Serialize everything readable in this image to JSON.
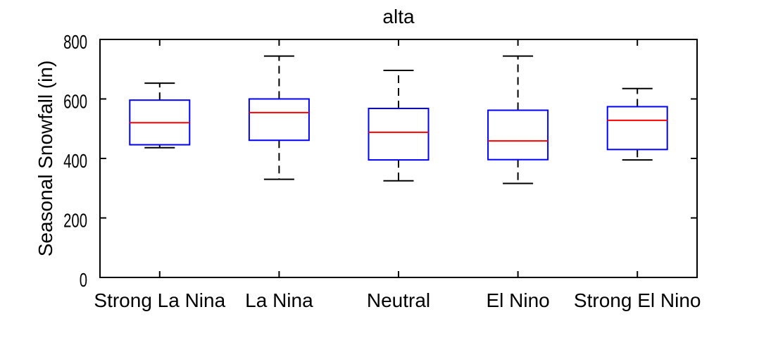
{
  "chart_data": {
    "type": "box",
    "title": "alta",
    "ylabel": "Seasonal Snowfall (in)",
    "categories": [
      "Strong La Nina",
      "La Nina",
      "Neutral",
      "El Nino",
      "Strong El Nino"
    ],
    "ylim": [
      0,
      800
    ],
    "yticks": [
      0,
      200,
      400,
      600,
      800
    ],
    "grid": false,
    "legend": false,
    "boxes": [
      {
        "category": "Strong La Nina",
        "whisker_low": 436,
        "q1": 446,
        "median": 520,
        "q3": 596,
        "whisker_high": 653
      },
      {
        "category": "La Nina",
        "whisker_low": 330,
        "q1": 461,
        "median": 554,
        "q3": 600,
        "whisker_high": 744
      },
      {
        "category": "Neutral",
        "whisker_low": 325,
        "q1": 395,
        "median": 488,
        "q3": 568,
        "whisker_high": 696
      },
      {
        "category": "El Nino",
        "whisker_low": 316,
        "q1": 396,
        "median": 459,
        "q3": 562,
        "whisker_high": 744
      },
      {
        "category": "Strong El Nino",
        "whisker_low": 395,
        "q1": 430,
        "median": 528,
        "q3": 574,
        "whisker_high": 635
      }
    ],
    "colors": {
      "box": "#0000ff",
      "median": "#ff0000",
      "whisker": "#000000",
      "axis": "#000000",
      "background": "#ffffff"
    }
  }
}
